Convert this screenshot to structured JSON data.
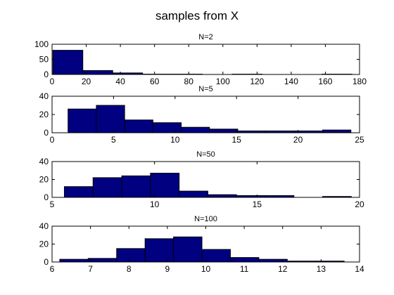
{
  "figure_title": "samples from X",
  "bar_color": "#000080",
  "chart_data": [
    {
      "type": "bar",
      "title": "N=2",
      "xlim": [
        0,
        180
      ],
      "ylim": [
        0,
        100
      ],
      "xticks": [
        0,
        20,
        40,
        60,
        80,
        100,
        120,
        140,
        160,
        180
      ],
      "yticks": [
        0,
        50,
        100
      ],
      "bins": [
        {
          "x0": 0.5,
          "x1": 18.0,
          "value": 80
        },
        {
          "x0": 18.0,
          "x1": 35.5,
          "value": 13
        },
        {
          "x0": 35.5,
          "x1": 53.0,
          "value": 5
        },
        {
          "x0": 53.0,
          "x1": 70.5,
          "value": 1
        },
        {
          "x0": 70.5,
          "x1": 88.0,
          "value": 1
        },
        {
          "x0": 88.0,
          "x1": 105.5,
          "value": 0
        },
        {
          "x0": 105.5,
          "x1": 123.0,
          "value": 1
        },
        {
          "x0": 123.0,
          "x1": 140.5,
          "value": 0
        },
        {
          "x0": 140.5,
          "x1": 158.0,
          "value": 0
        },
        {
          "x0": 158.0,
          "x1": 175.5,
          "value": 1
        }
      ]
    },
    {
      "type": "bar",
      "title": "N=5",
      "xlim": [
        0,
        25
      ],
      "ylim": [
        0,
        40
      ],
      "xticks": [
        0,
        5,
        10,
        15,
        20,
        25
      ],
      "yticks": [
        0,
        20,
        40
      ],
      "bins": [
        {
          "x0": 1.3,
          "x1": 3.6,
          "value": 26
        },
        {
          "x0": 3.6,
          "x1": 5.9,
          "value": 30
        },
        {
          "x0": 5.9,
          "x1": 8.2,
          "value": 14
        },
        {
          "x0": 8.2,
          "x1": 10.5,
          "value": 11
        },
        {
          "x0": 10.5,
          "x1": 12.8,
          "value": 6
        },
        {
          "x0": 12.8,
          "x1": 15.1,
          "value": 4
        },
        {
          "x0": 15.1,
          "x1": 17.4,
          "value": 2
        },
        {
          "x0": 17.4,
          "x1": 19.7,
          "value": 2
        },
        {
          "x0": 19.7,
          "x1": 22.0,
          "value": 2
        },
        {
          "x0": 22.0,
          "x1": 24.3,
          "value": 3
        }
      ]
    },
    {
      "type": "bar",
      "title": "N=50",
      "xlim": [
        5,
        20
      ],
      "ylim": [
        0,
        40
      ],
      "xticks": [
        5,
        10,
        15,
        20
      ],
      "yticks": [
        0,
        20,
        40
      ],
      "bins": [
        {
          "x0": 5.6,
          "x1": 7.0,
          "value": 12
        },
        {
          "x0": 7.0,
          "x1": 8.4,
          "value": 22
        },
        {
          "x0": 8.4,
          "x1": 9.8,
          "value": 24
        },
        {
          "x0": 9.8,
          "x1": 11.2,
          "value": 27
        },
        {
          "x0": 11.2,
          "x1": 12.6,
          "value": 7
        },
        {
          "x0": 12.6,
          "x1": 14.0,
          "value": 3
        },
        {
          "x0": 14.0,
          "x1": 15.4,
          "value": 2
        },
        {
          "x0": 15.4,
          "x1": 16.8,
          "value": 2
        },
        {
          "x0": 16.8,
          "x1": 18.2,
          "value": 0
        },
        {
          "x0": 18.2,
          "x1": 19.6,
          "value": 1
        }
      ]
    },
    {
      "type": "bar",
      "title": "N=100",
      "xlim": [
        6,
        14
      ],
      "ylim": [
        0,
        40
      ],
      "xticks": [
        6,
        7,
        8,
        9,
        10,
        11,
        12,
        13,
        14
      ],
      "yticks": [
        0,
        20,
        40
      ],
      "bins": [
        {
          "x0": 6.2,
          "x1": 6.94,
          "value": 3
        },
        {
          "x0": 6.94,
          "x1": 7.68,
          "value": 4
        },
        {
          "x0": 7.68,
          "x1": 8.42,
          "value": 15
        },
        {
          "x0": 8.42,
          "x1": 9.16,
          "value": 26
        },
        {
          "x0": 9.16,
          "x1": 9.9,
          "value": 28
        },
        {
          "x0": 9.9,
          "x1": 10.64,
          "value": 14
        },
        {
          "x0": 10.64,
          "x1": 11.38,
          "value": 5
        },
        {
          "x0": 11.38,
          "x1": 12.12,
          "value": 3
        },
        {
          "x0": 12.12,
          "x1": 12.86,
          "value": 1
        },
        {
          "x0": 12.86,
          "x1": 13.6,
          "value": 1
        }
      ]
    }
  ]
}
